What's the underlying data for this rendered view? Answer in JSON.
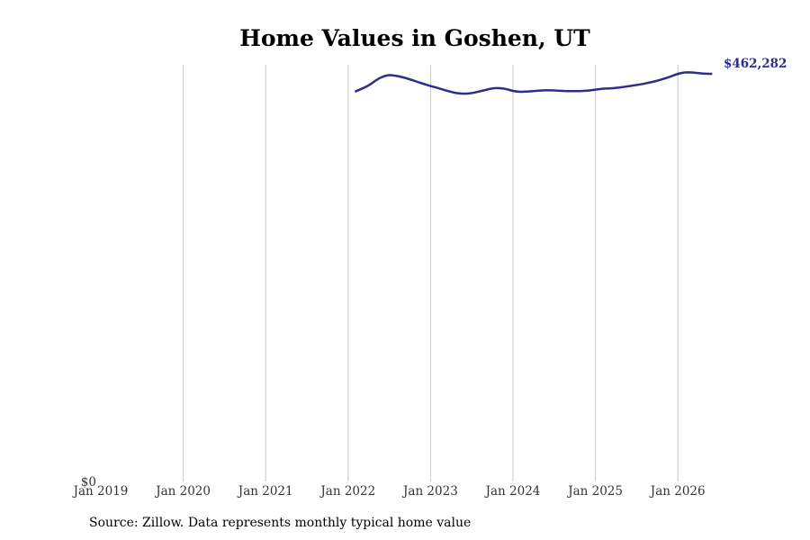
{
  "chart_data": {
    "type": "line",
    "title": "Home Values in Goshen, UT",
    "xlabel": "",
    "ylabel": "",
    "x_ticks": [
      "Jan 2019",
      "Jan 2020",
      "Jan 2021",
      "Jan 2022",
      "Jan 2023",
      "Jan 2024",
      "Jan 2025",
      "Jan 2026"
    ],
    "y_ticks": [
      "$0"
    ],
    "xlim": [
      "2019-01",
      "2026-06"
    ],
    "ylim": [
      0,
      462282
    ],
    "grid": "vertical",
    "legend": "none",
    "line_color": "#2e2d88",
    "end_label": "$462,282",
    "series": [
      {
        "x": [
          "2022-02",
          "2022-03",
          "2022-04",
          "2022-05",
          "2022-06",
          "2022-07",
          "2022-08",
          "2022-09",
          "2022-10",
          "2022-11",
          "2022-12",
          "2023-01",
          "2023-02",
          "2023-03",
          "2023-04",
          "2023-05",
          "2023-06",
          "2023-07",
          "2023-08",
          "2023-09",
          "2023-10",
          "2023-11",
          "2023-12",
          "2024-01",
          "2024-02",
          "2024-03",
          "2024-04",
          "2024-05",
          "2024-06",
          "2024-07",
          "2024-08",
          "2024-09",
          "2024-10",
          "2024-11",
          "2024-12",
          "2025-01",
          "2025-02",
          "2025-03",
          "2025-04",
          "2025-05",
          "2025-06",
          "2025-07",
          "2025-08",
          "2025-09",
          "2025-10",
          "2025-11",
          "2025-12",
          "2026-01",
          "2026-02",
          "2026-03",
          "2026-04",
          "2026-05",
          "2026-06"
        ],
        "values": [
          432000,
          435700,
          439500,
          446000,
          451000,
          453000,
          452000,
          450000,
          447500,
          444500,
          441700,
          439000,
          436700,
          434000,
          431700,
          429700,
          429300,
          430000,
          432000,
          434000,
          436300,
          436500,
          435400,
          432700,
          431700,
          432000,
          432700,
          433400,
          433700,
          433400,
          433000,
          432700,
          432700,
          432700,
          433400,
          434500,
          435600,
          436000,
          436700,
          437700,
          439000,
          440300,
          441700,
          443800,
          445600,
          448300,
          451000,
          454500,
          456200,
          456100,
          455200,
          454400,
          462282
        ]
      }
    ]
  }
}
